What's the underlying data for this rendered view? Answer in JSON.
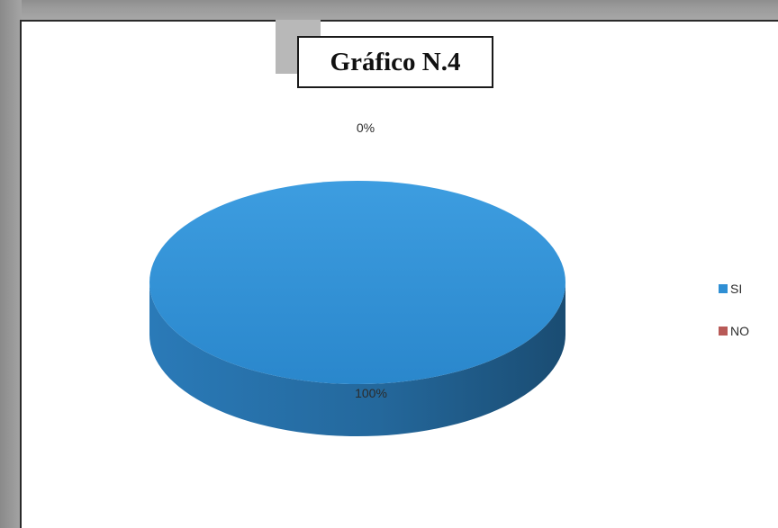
{
  "chart_data": {
    "type": "pie",
    "title": "Gráfico N.4",
    "categories": [
      "SI",
      "NO"
    ],
    "values": [
      100,
      0
    ],
    "data_labels": [
      "100%",
      "0%"
    ],
    "legend": [
      "SI",
      "NO"
    ],
    "legend_placement": "right",
    "colors": [
      "#2f8fd4",
      "#b85a57"
    ],
    "style": "3d"
  }
}
